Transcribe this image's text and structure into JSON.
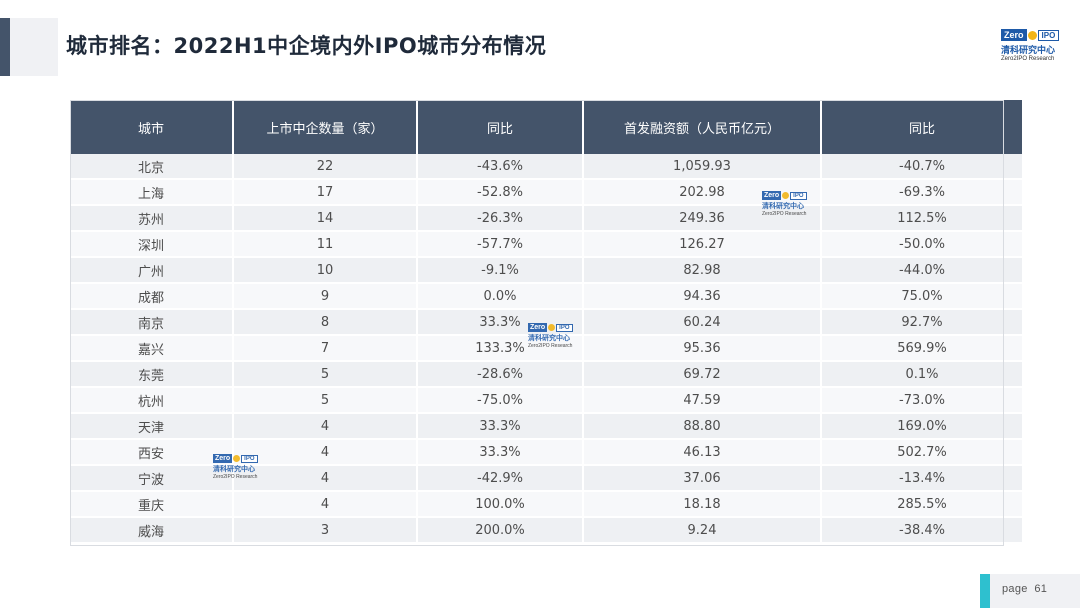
{
  "title": "城市排名：2022H1中企境内外IPO城市分布情况",
  "logo": {
    "brand": "Zero",
    "ipo": "IPO",
    "cn": "清科研究中心",
    "en": "Zero2IPO Research"
  },
  "table": {
    "headers": [
      "城市",
      "上市中企数量（家）",
      "同比",
      "首发融资额（人民币亿元）",
      "同比"
    ],
    "rows": [
      [
        "北京",
        "22",
        "-43.6%",
        "1,059.93",
        "-40.7%"
      ],
      [
        "上海",
        "17",
        "-52.8%",
        "202.98",
        "-69.3%"
      ],
      [
        "苏州",
        "14",
        "-26.3%",
        "249.36",
        "112.5%"
      ],
      [
        "深圳",
        "11",
        "-57.7%",
        "126.27",
        "-50.0%"
      ],
      [
        "广州",
        "10",
        "-9.1%",
        "82.98",
        "-44.0%"
      ],
      [
        "成都",
        "9",
        "0.0%",
        "94.36",
        "75.0%"
      ],
      [
        "南京",
        "8",
        "33.3%",
        "60.24",
        "92.7%"
      ],
      [
        "嘉兴",
        "7",
        "133.3%",
        "95.36",
        "569.9%"
      ],
      [
        "东莞",
        "5",
        "-28.6%",
        "69.72",
        "0.1%"
      ],
      [
        "杭州",
        "5",
        "-75.0%",
        "47.59",
        "-73.0%"
      ],
      [
        "天津",
        "4",
        "33.3%",
        "88.80",
        "169.0%"
      ],
      [
        "西安",
        "4",
        "33.3%",
        "46.13",
        "502.7%"
      ],
      [
        "宁波",
        "4",
        "-42.9%",
        "37.06",
        "-13.4%"
      ],
      [
        "重庆",
        "4",
        "100.0%",
        "18.18",
        "285.5%"
      ],
      [
        "威海",
        "3",
        "200.0%",
        "9.24",
        "-38.4%"
      ]
    ]
  },
  "page": {
    "label": "page",
    "number": "61"
  },
  "colors": {
    "header_bg": "#44546a",
    "accent": "#2ec0cf",
    "logo_blue": "#1e5aa8",
    "logo_gold": "#f2b518"
  }
}
